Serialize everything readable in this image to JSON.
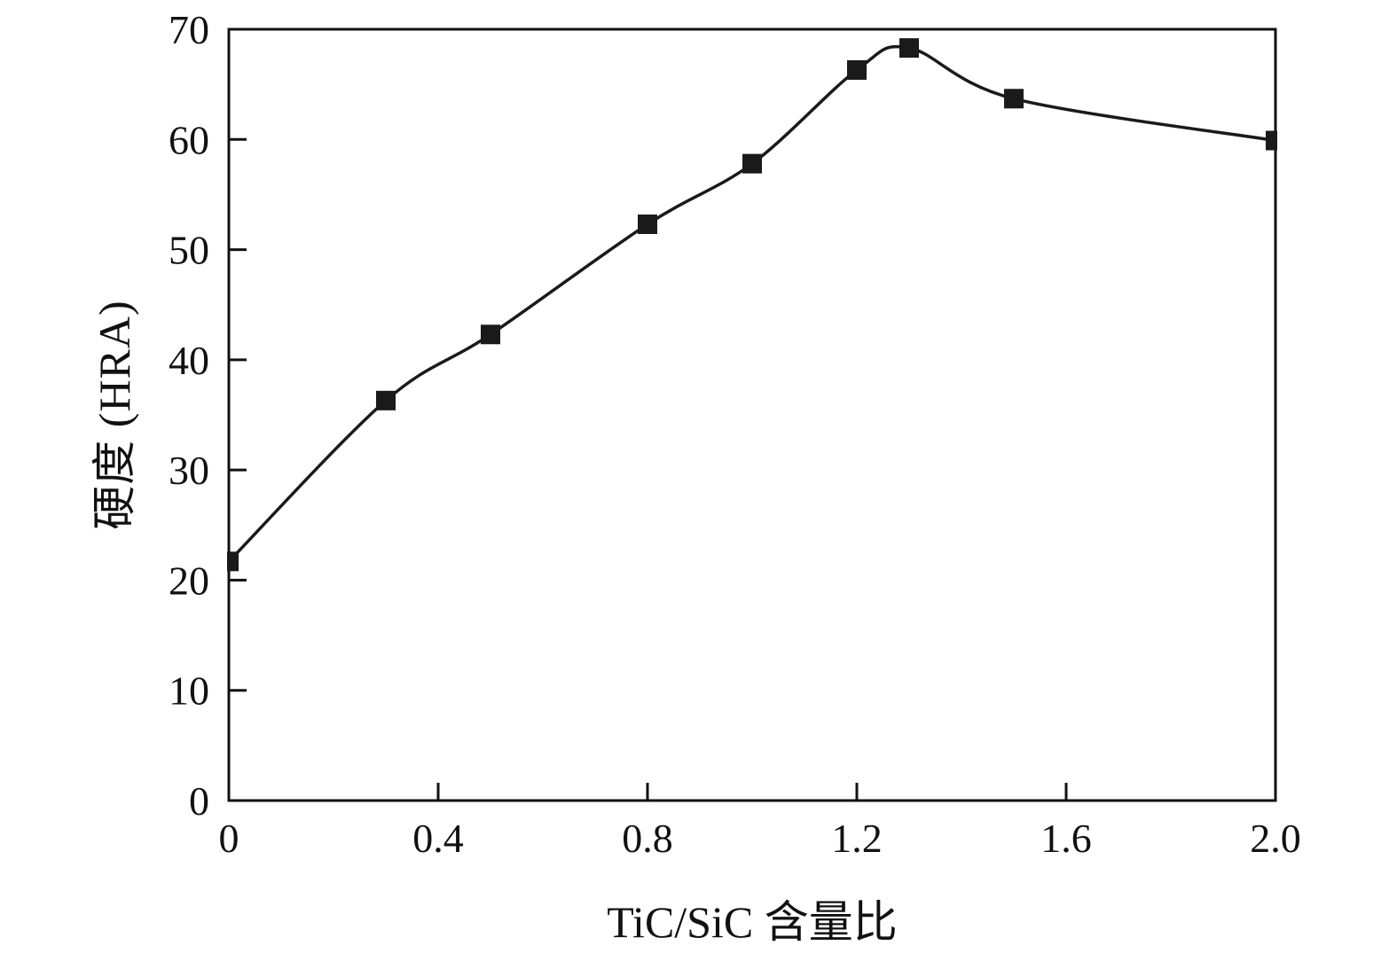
{
  "figure": {
    "background": "#ffffff",
    "ink": "#111111"
  },
  "chart_data": {
    "type": "line",
    "title": "",
    "xlabel": "TiC/SiC 含量比",
    "ylabel": "硬度 (HRA)",
    "xlim": [
      0,
      2.0
    ],
    "ylim": [
      0,
      70
    ],
    "x_major_ticks": [
      0,
      0.4,
      0.8,
      1.2,
      1.6,
      2.0
    ],
    "x_tick_labels": [
      "0",
      "0.4",
      "0.8",
      "1.2",
      "1.6",
      "2.0"
    ],
    "y_major_ticks": [
      0,
      10,
      20,
      30,
      40,
      50,
      60,
      70
    ],
    "y_tick_labels": [
      "0",
      "10",
      "20",
      "30",
      "40",
      "50",
      "60",
      "70"
    ],
    "grid": false,
    "legend_position": "none",
    "line_color": "#1a1a1a",
    "marker": "square",
    "marker_size": 22,
    "series": [
      {
        "name": "硬度 (HRA)",
        "x": [
          0,
          0.3,
          0.5,
          0.8,
          1.0,
          1.2,
          1.3,
          1.5,
          2.0
        ],
        "y": [
          21.7,
          36.3,
          42.3,
          52.3,
          57.8,
          66.3,
          68.3,
          63.7,
          59.9
        ]
      }
    ]
  }
}
